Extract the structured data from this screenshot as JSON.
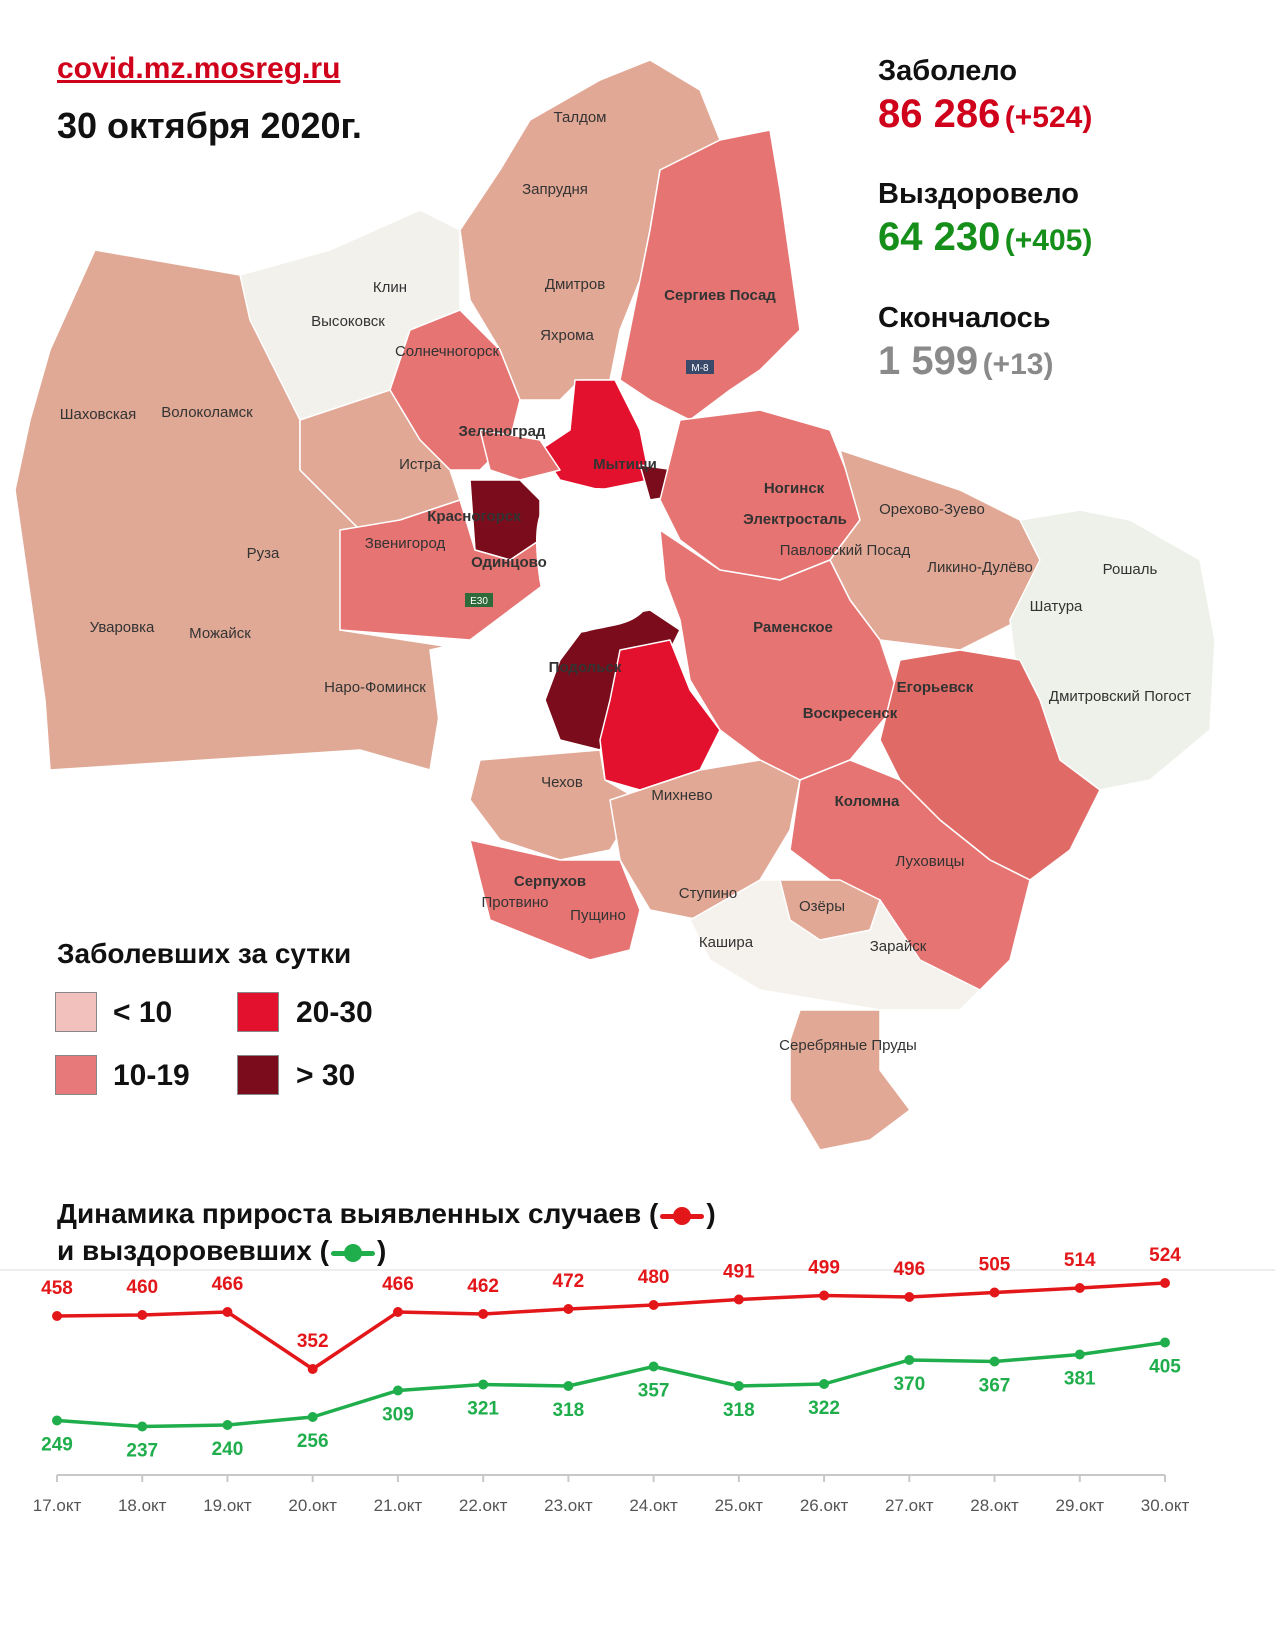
{
  "header": {
    "site": "covid.mz.mosreg.ru",
    "date": "30 октября 2020г."
  },
  "stats": {
    "infected": {
      "label": "Заболело",
      "value": "86 286",
      "delta": "(+524)",
      "color": "#d0021b"
    },
    "recovered": {
      "label": "Выздоровело",
      "value": "64 230",
      "delta": "(+405)",
      "color": "#168f1a"
    },
    "deaths": {
      "label": "Скончалось",
      "value": "1 599",
      "delta": "(+13)",
      "color": "#8a8a8a"
    }
  },
  "map": {
    "cities": [
      "Талдом",
      "Запрудня",
      "Клин",
      "Высоковск",
      "Дмитров",
      "Яхрома",
      "Сергиев Посад",
      "Солнечногорск",
      "Шаховская",
      "Волоколамск",
      "Зеленоград",
      "Истра",
      "Мытищи",
      "Ногинск",
      "Электросталь",
      "Орехово-Зуево",
      "Красногорск",
      "Звенигород",
      "Одинцово",
      "Павловский Посад",
      "Ликино-Дулёво",
      "Рошаль",
      "Руза",
      "Шатура",
      "Уваровка",
      "Можайск",
      "Раменское",
      "Подольск",
      "Наро-Фоминск",
      "Егорьевск",
      "Дмитровский Погост",
      "Воскресенск",
      "Чехов",
      "Михнево",
      "Коломна",
      "Серпухов",
      "Луховицы",
      "Ступино",
      "Озёры",
      "Пущино",
      "Протвино",
      "Кашира",
      "Зарайск",
      "Серебряные Пруды"
    ],
    "road_badges": [
      "М-8",
      "Е30"
    ]
  },
  "legend": {
    "title": "Заболевших за сутки",
    "items": [
      {
        "label": "< 10",
        "color": "#f2c0bd"
      },
      {
        "label": "20-30",
        "color": "#e3112e"
      },
      {
        "label": "10-19",
        "color": "#e7797a"
      },
      {
        "label": "> 30",
        "color": "#7a0c1b"
      }
    ]
  },
  "chart_title": {
    "line1_prefix": "Динамика прироста выявленных случаев (",
    "line1_suffix": ")",
    "line2_prefix": "и выздоровевших (",
    "line2_suffix": ")"
  },
  "chart_data": {
    "type": "line",
    "x": [
      "17.окт",
      "18.окт",
      "19.окт",
      "20.окт",
      "21.окт",
      "22.окт",
      "23.окт",
      "24.окт",
      "25.окт",
      "26.окт",
      "27.окт",
      "28.окт",
      "29.окт",
      "30.окт"
    ],
    "series": [
      {
        "color": "#e3171a",
        "values": [
          458,
          460,
          466,
          352,
          466,
          462,
          472,
          480,
          491,
          499,
          496,
          505,
          514,
          524
        ]
      },
      {
        "color": "#1fae4b",
        "values": [
          249,
          237,
          240,
          256,
          309,
          321,
          318,
          357,
          318,
          322,
          370,
          367,
          381,
          405
        ]
      }
    ],
    "grid": false,
    "legend": "in-title"
  }
}
